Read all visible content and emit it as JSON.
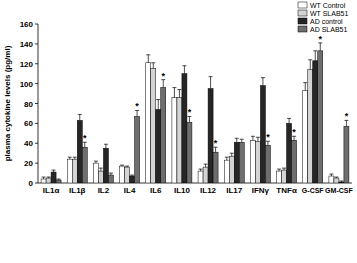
{
  "chart_data": {
    "type": "bar",
    "y_label": "plasma cytokine levels (pg/ml)",
    "categories": [
      "IL1α",
      "IL1β",
      "IL2",
      "IL4",
      "IL6",
      "IL10",
      "IL12",
      "IL17",
      "IFNγ",
      "TNFα",
      "G-CSF",
      "GM-CSF"
    ],
    "series": [
      {
        "name": "WT Control",
        "color": "#ffffff",
        "values": [
          4,
          24,
          20,
          17,
          121,
          86,
          12,
          23,
          43,
          12,
          93,
          7
        ],
        "errors": [
          2,
          2,
          2,
          1,
          8,
          10,
          2,
          3,
          4,
          2,
          8,
          2
        ]
      },
      {
        "name": "WT SLAB51",
        "color": "#d4d4d4",
        "values": [
          5,
          24,
          12,
          16,
          115,
          86,
          16,
          27,
          42,
          13,
          114,
          5
        ],
        "errors": [
          1,
          2,
          3,
          1,
          6,
          8,
          3,
          3,
          4,
          2,
          10,
          1
        ]
      },
      {
        "name": "AD control",
        "color": "#262626",
        "values": [
          11,
          63,
          35,
          7,
          74,
          110,
          95,
          41,
          98,
          60,
          123,
          1
        ],
        "errors": [
          2,
          6,
          4,
          1,
          10,
          8,
          12,
          4,
          8,
          5,
          10,
          1
        ]
      },
      {
        "name": "AD SLAB51",
        "color": "#6e6e6e",
        "values": [
          3,
          36,
          8,
          67,
          96,
          61,
          31,
          41,
          38,
          43,
          133,
          57
        ],
        "errors": [
          1,
          5,
          2,
          6,
          8,
          6,
          5,
          3,
          4,
          4,
          8,
          6
        ],
        "annotations": [
          null,
          "*",
          null,
          "*",
          "*",
          "*",
          "*",
          null,
          "*",
          "*",
          "*",
          "*"
        ]
      }
    ],
    "ylim": [
      0,
      160
    ],
    "yticks": [
      0,
      20,
      40,
      60,
      80,
      100,
      120,
      140,
      160
    ],
    "grid": false,
    "legend": "top-right"
  }
}
